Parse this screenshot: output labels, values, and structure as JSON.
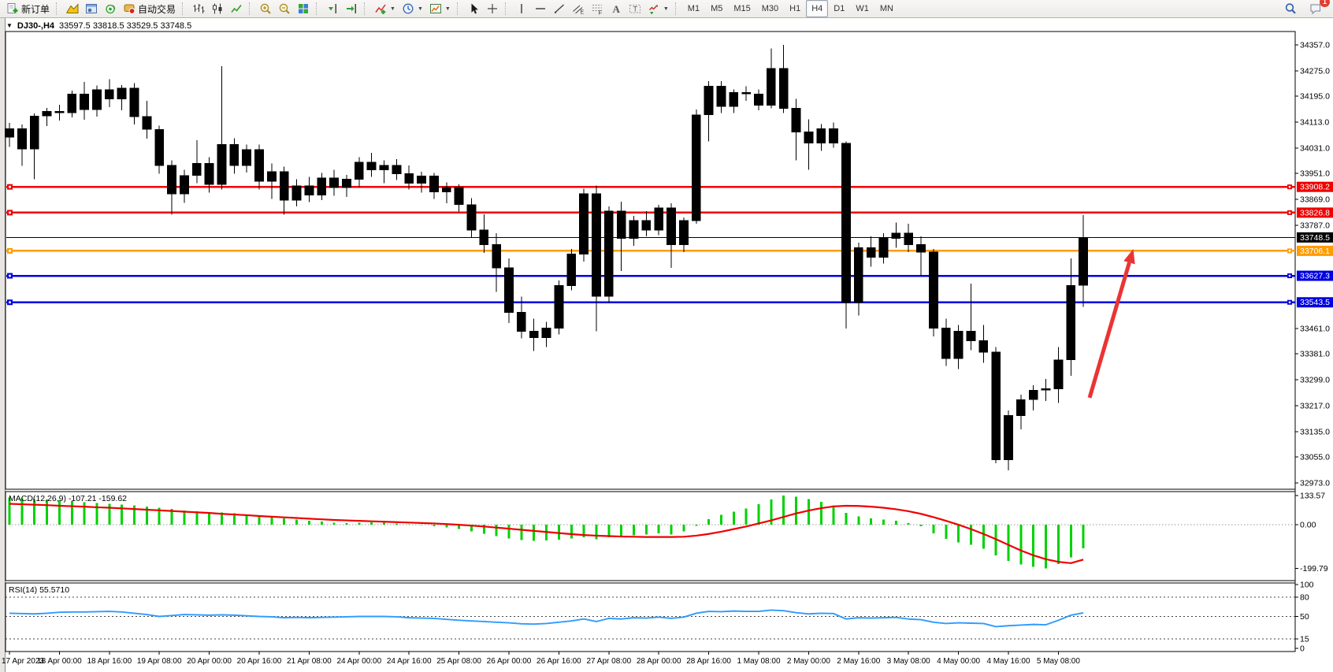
{
  "toolbar": {
    "groups": [
      {
        "items": [
          {
            "name": "new-order-button",
            "icon": "new-order",
            "label": "新订单"
          }
        ]
      },
      {
        "items": [
          {
            "name": "market-watch-button",
            "icon": "market-watch"
          },
          {
            "name": "data-window-button",
            "icon": "data-window"
          },
          {
            "name": "strategy-tester-button",
            "icon": "strategy-tester"
          },
          {
            "name": "auto-trading-button",
            "icon": "auto-trading",
            "label": "自动交易"
          }
        ]
      },
      {
        "items": [
          {
            "name": "bar-chart-button",
            "icon": "bar-chart"
          },
          {
            "name": "candlestick-chart-button",
            "icon": "candle-chart"
          },
          {
            "name": "line-chart-button",
            "icon": "line-chart"
          }
        ]
      },
      {
        "items": [
          {
            "name": "zoom-in-button",
            "icon": "zoom-in"
          },
          {
            "name": "zoom-out-button",
            "icon": "zoom-out"
          },
          {
            "name": "tile-windows-button",
            "icon": "tile-windows"
          }
        ]
      },
      {
        "items": [
          {
            "name": "chart-shift-button",
            "icon": "chart-shift"
          },
          {
            "name": "auto-scroll-button",
            "icon": "auto-scroll"
          }
        ]
      },
      {
        "items": [
          {
            "name": "indicators-button",
            "icon": "indicators",
            "caret": true
          },
          {
            "name": "periods-button",
            "icon": "periods",
            "caret": true
          },
          {
            "name": "templates-button",
            "icon": "templates",
            "caret": true
          }
        ]
      },
      {
        "items": [
          {
            "name": "cursor-button",
            "icon": "cursor"
          },
          {
            "name": "crosshair-button",
            "icon": "crosshair"
          }
        ]
      },
      {
        "items": [
          {
            "name": "vertical-line-button",
            "icon": "vline"
          },
          {
            "name": "horizontal-line-button",
            "icon": "hline"
          },
          {
            "name": "trendline-button",
            "icon": "trendline"
          },
          {
            "name": "channel-button",
            "icon": "channel"
          },
          {
            "name": "fibonacci-button",
            "icon": "fibonacci"
          },
          {
            "name": "text-button",
            "icon": "text"
          },
          {
            "name": "label-button",
            "icon": "label"
          },
          {
            "name": "arrows-button",
            "icon": "arrows",
            "caret": true
          }
        ]
      }
    ],
    "timeframes": [
      {
        "label": "M1"
      },
      {
        "label": "M5"
      },
      {
        "label": "M15"
      },
      {
        "label": "M30"
      },
      {
        "label": "H1"
      },
      {
        "label": "H4",
        "active": true
      },
      {
        "label": "D1"
      },
      {
        "label": "W1"
      },
      {
        "label": "MN"
      }
    ],
    "right": {
      "chat_badge": "1"
    }
  },
  "window": {
    "collapse_glyph": "▼",
    "title_symbol": "DJ30-,H4",
    "title_ohlc": "33597.5 33818.5 33529.5 33748.5"
  },
  "chart_data": {
    "type": "candlestick",
    "title": "DJ30-,H4  33597.5 33818.5 33529.5 33748.5",
    "bull_color": "#ee1c1c",
    "bear_color": "#00d200",
    "time_labels": [
      "17 Apr 2023",
      "18 Apr 00:00",
      "18 Apr 16:00",
      "19 Apr 08:00",
      "20 Apr 00:00",
      "20 Apr 16:00",
      "21 Apr 08:00",
      "24 Apr 00:00",
      "24 Apr 16:00",
      "25 Apr 08:00",
      "26 Apr 00:00",
      "26 Apr 16:00",
      "27 Apr 08:00",
      "28 Apr 00:00",
      "28 Apr 16:00",
      "1 May 08:00",
      "2 May 00:00",
      "2 May 16:00",
      "3 May 08:00",
      "4 May 00:00",
      "4 May 16:00",
      "5 May 08:00"
    ],
    "label_every": 4,
    "main": {
      "y_range": [
        32953,
        34399
      ],
      "ticks": [
        34357.0,
        34275.0,
        34195.0,
        34113.0,
        34031.0,
        33951.0,
        33869.0,
        33787.0,
        33461.0,
        33381.0,
        33299.0,
        33217.0,
        33135.0,
        33055.0,
        32973.0
      ],
      "levels": [
        {
          "value": 33908.2,
          "badge": "33908.2",
          "color": "#ee0000",
          "width": 2.6,
          "handles": true
        },
        {
          "value": 33826.8,
          "badge": "33826.8",
          "color": "#ee0000",
          "width": 2.6,
          "handles": true
        },
        {
          "value": 33748.5,
          "badge": "33748.5",
          "color": "#000000",
          "width": 1,
          "handles": false
        },
        {
          "value": 33706.1,
          "badge": "33706.1",
          "color": "#ff9c00",
          "width": 2.6,
          "handles": true
        },
        {
          "value": 33627.3,
          "badge": "33627.3",
          "color": "#0000e0",
          "width": 2.6,
          "handles": true
        },
        {
          "value": 33543.5,
          "badge": "33543.5",
          "color": "#0000e0",
          "width": 2.6,
          "handles": true
        }
      ],
      "arrow": {
        "from_index": 86.5,
        "from_price": 33242,
        "to_index": 90.0,
        "to_price": 33712,
        "color": "#ea3434"
      },
      "candles": [
        [
          34065,
          34110,
          34035,
          34092
        ],
        [
          34092,
          34105,
          33975,
          34028
        ],
        [
          34028,
          34140,
          33932,
          34132
        ],
        [
          34132,
          34158,
          34100,
          34147
        ],
        [
          34147,
          34168,
          34118,
          34142
        ],
        [
          34142,
          34212,
          34128,
          34202
        ],
        [
          34202,
          34240,
          34120,
          34152
        ],
        [
          34152,
          34228,
          34130,
          34215
        ],
        [
          34215,
          34248,
          34160,
          34186
        ],
        [
          34186,
          34230,
          34150,
          34220
        ],
        [
          34220,
          34236,
          34105,
          34130
        ],
        [
          34130,
          34180,
          34060,
          34090
        ],
        [
          34090,
          34102,
          33950,
          33976
        ],
        [
          33976,
          33992,
          33820,
          33886
        ],
        [
          33886,
          33962,
          33858,
          33944
        ],
        [
          33944,
          34056,
          33920,
          33982
        ],
        [
          33982,
          34002,
          33890,
          33916
        ],
        [
          33916,
          34290,
          33900,
          34042
        ],
        [
          34042,
          34062,
          33950,
          33976
        ],
        [
          33976,
          34042,
          33954,
          34026
        ],
        [
          34026,
          34042,
          33900,
          33926
        ],
        [
          33926,
          33982,
          33870,
          33956
        ],
        [
          33956,
          33972,
          33820,
          33866
        ],
        [
          33866,
          33932,
          33846,
          33912
        ],
        [
          33912,
          33940,
          33860,
          33882
        ],
        [
          33882,
          33952,
          33866,
          33936
        ],
        [
          33936,
          33962,
          33880,
          33906
        ],
        [
          33906,
          33946,
          33876,
          33932
        ],
        [
          33932,
          34002,
          33906,
          33986
        ],
        [
          33986,
          34016,
          33940,
          33962
        ],
        [
          33962,
          33992,
          33920,
          33976
        ],
        [
          33976,
          33996,
          33930,
          33950
        ],
        [
          33950,
          33976,
          33900,
          33920
        ],
        [
          33920,
          33956,
          33890,
          33942
        ],
        [
          33942,
          33952,
          33870,
          33892
        ],
        [
          33892,
          33922,
          33856,
          33906
        ],
        [
          33906,
          33916,
          33830,
          33852
        ],
        [
          33852,
          33872,
          33748,
          33772
        ],
        [
          33772,
          33822,
          33700,
          33726
        ],
        [
          33726,
          33762,
          33576,
          33652
        ],
        [
          33652,
          33682,
          33478,
          33512
        ],
        [
          33512,
          33562,
          33430,
          33452
        ],
        [
          33452,
          33492,
          33390,
          33432
        ],
        [
          33432,
          33482,
          33402,
          33462
        ],
        [
          33462,
          33612,
          33442,
          33596
        ],
        [
          33596,
          33712,
          33582,
          33696
        ],
        [
          33696,
          33902,
          33672,
          33886
        ],
        [
          33886,
          33912,
          33452,
          33562
        ],
        [
          33562,
          33846,
          33542,
          33832
        ],
        [
          33832,
          33862,
          33642,
          33746
        ],
        [
          33746,
          33816,
          33722,
          33802
        ],
        [
          33802,
          33832,
          33752,
          33772
        ],
        [
          33772,
          33852,
          33756,
          33842
        ],
        [
          33842,
          33856,
          33652,
          33726
        ],
        [
          33726,
          33812,
          33702,
          33802
        ],
        [
          33802,
          34152,
          33792,
          34136
        ],
        [
          34136,
          34242,
          34052,
          34226
        ],
        [
          34226,
          34242,
          34142,
          34162
        ],
        [
          34162,
          34216,
          34142,
          34206
        ],
        [
          34206,
          34226,
          34180,
          34202
        ],
        [
          34202,
          34216,
          34150,
          34166
        ],
        [
          34166,
          34346,
          34156,
          34282
        ],
        [
          34282,
          34357,
          34142,
          34156
        ],
        [
          34156,
          34186,
          33992,
          34082
        ],
        [
          34082,
          34122,
          33962,
          34046
        ],
        [
          34046,
          34106,
          34022,
          34092
        ],
        [
          34092,
          34112,
          34032,
          34046
        ],
        [
          34046,
          34052,
          33461,
          33542
        ],
        [
          33542,
          33732,
          33502,
          33716
        ],
        [
          33716,
          33752,
          33656,
          33686
        ],
        [
          33686,
          33762,
          33666,
          33746
        ],
        [
          33746,
          33796,
          33716,
          33762
        ],
        [
          33762,
          33792,
          33702,
          33726
        ],
        [
          33726,
          33752,
          33627,
          33702
        ],
        [
          33702,
          33712,
          33436,
          33462
        ],
        [
          33462,
          33492,
          33342,
          33366
        ],
        [
          33366,
          33472,
          33332,
          33452
        ],
        [
          33452,
          33602,
          33392,
          33422
        ],
        [
          33422,
          33472,
          33352,
          33386
        ],
        [
          33386,
          33402,
          33035,
          33046
        ],
        [
          33046,
          33202,
          33013,
          33186
        ],
        [
          33186,
          33252,
          33142,
          33236
        ],
        [
          33236,
          33282,
          33202,
          33266
        ],
        [
          33266,
          33302,
          33232,
          33270
        ],
        [
          33270,
          33402,
          33226,
          33362
        ],
        [
          33362,
          33682,
          33312,
          33596
        ],
        [
          33597.5,
          33818.5,
          33529.5,
          33748.5
        ]
      ]
    },
    "macd": {
      "label": "MACD(12,26,9) -107.21 -159.62",
      "ticks": [
        {
          "text": "133.57",
          "value": 133.57
        },
        {
          "text": "0.00",
          "value": 0
        },
        {
          "text": "-199.79",
          "value": -199.79
        }
      ],
      "y_range": [
        -256,
        152
      ],
      "hist_color": "#00d200",
      "signal_color": "#ee0000",
      "hist": [
        125,
        122,
        118,
        115,
        112,
        108,
        104,
        100,
        96,
        92,
        88,
        84,
        78,
        72,
        66,
        62,
        58,
        56,
        52,
        48,
        42,
        36,
        30,
        24,
        18,
        14,
        10,
        8,
        10,
        12,
        10,
        6,
        2,
        -2,
        -6,
        -12,
        -20,
        -30,
        -42,
        -52,
        -62,
        -70,
        -74,
        -72,
        -68,
        -62,
        -58,
        -66,
        -58,
        -52,
        -48,
        -45,
        -40,
        -44,
        -30,
        -5,
        25,
        45,
        60,
        75,
        95,
        115,
        133.57,
        128,
        118,
        105,
        88,
        55,
        38,
        30,
        24,
        18,
        8,
        -6,
        -40,
        -65,
        -80,
        -92,
        -110,
        -140,
        -165,
        -182,
        -193,
        -199.79,
        -180,
        -150,
        -107.21
      ],
      "signal": [
        96,
        94,
        92,
        90,
        87,
        85,
        83,
        80,
        78,
        75,
        72,
        69,
        66,
        63,
        60,
        57,
        54,
        50,
        47,
        44,
        40,
        37,
        34,
        31,
        28,
        25,
        22,
        20,
        18,
        16,
        14,
        12,
        10,
        8,
        6,
        3,
        0,
        -4,
        -8,
        -13,
        -18,
        -23,
        -28,
        -33,
        -38,
        -43,
        -47,
        -50,
        -52,
        -54,
        -55,
        -56,
        -56,
        -56,
        -55,
        -50,
        -42,
        -32,
        -20,
        -8,
        6,
        20,
        36,
        52,
        65,
        76,
        84,
        87,
        86,
        83,
        78,
        71,
        62,
        50,
        35,
        18,
        0,
        -20,
        -42,
        -66,
        -92,
        -118,
        -140,
        -158,
        -170,
        -176,
        -159.62
      ]
    },
    "rsi": {
      "label": "RSI(14) 55.5710",
      "ticks": [
        100,
        80,
        50,
        15,
        0
      ],
      "dashed_levels": [
        80,
        50,
        15
      ],
      "y_range": [
        0,
        100
      ],
      "color": "#2f9bff",
      "values": [
        55,
        54.5,
        54,
        55,
        56.5,
        57,
        57,
        57.5,
        58,
        57,
        55,
        53,
        50,
        51.5,
        53,
        52.5,
        52,
        52.5,
        52,
        51,
        50,
        49.5,
        48,
        48.5,
        48,
        48.5,
        49,
        49.5,
        50,
        50,
        50,
        49.5,
        48,
        47.5,
        47,
        45.5,
        44,
        43,
        42,
        41,
        40,
        38.5,
        38,
        39,
        41,
        43,
        46,
        42,
        47,
        46,
        48,
        47.5,
        49,
        47,
        49,
        55,
        58,
        57.5,
        58.5,
        58,
        58,
        60,
        59,
        56,
        54,
        55,
        54.5,
        46,
        48,
        47.5,
        48,
        48.5,
        46,
        45,
        41,
        39,
        40,
        39.5,
        39,
        34,
        35.5,
        36.5,
        37.5,
        37,
        44,
        52,
        55.57
      ]
    }
  }
}
